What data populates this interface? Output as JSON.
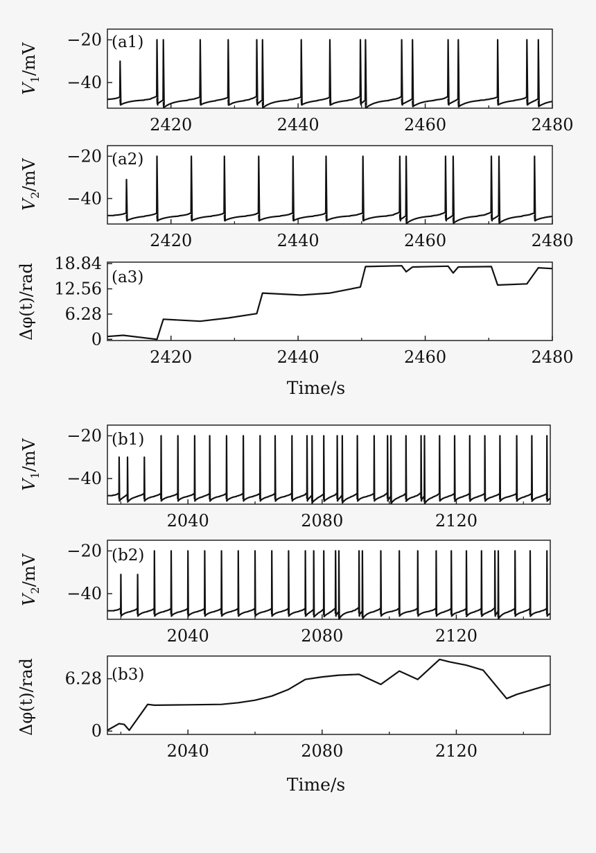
{
  "chart_data": [
    {
      "id": "a1",
      "type": "line",
      "panel_label": "(a1)",
      "ylabel": "V_1/mV",
      "ylabel_main": "V",
      "ylabel_sub": "1",
      "ylabel_rest": "/mV",
      "xlim": [
        2410,
        2480
      ],
      "ylim": [
        -52,
        -15
      ],
      "xticks": [
        2420,
        2440,
        2460,
        2480
      ],
      "yticks": [
        -20,
        -40
      ],
      "baseline": -48,
      "spikes": [
        2412,
        2417.8,
        2418.8,
        2424.6,
        2429.0,
        2433.5,
        2434.4,
        2440.5,
        2445.0,
        2449.8,
        2450.6,
        2456.3,
        2458.0,
        2463.6,
        2465.2,
        2471.4,
        2476.0,
        2477.8
      ],
      "spike_peak": -20,
      "small_spikes": [
        2412
      ],
      "small_peak": -30
    },
    {
      "id": "a2",
      "type": "line",
      "panel_label": "(a2)",
      "ylabel": "V_2/mV",
      "ylabel_main": "V",
      "ylabel_sub": "2",
      "ylabel_rest": "/mV",
      "xlim": [
        2410,
        2480
      ],
      "ylim": [
        -52,
        -15
      ],
      "xticks": [
        2420,
        2440,
        2460,
        2480
      ],
      "yticks": [
        -20,
        -40
      ],
      "baseline": -48,
      "spikes": [
        2413.0,
        2417.8,
        2423.2,
        2428.4,
        2433.8,
        2439.2,
        2444.4,
        2450.2,
        2456.0,
        2457.0,
        2463.2,
        2464.4,
        2470.4,
        2471.6,
        2477.2
      ],
      "spike_peak": -20,
      "small_spikes": [
        2413.0
      ],
      "small_peak": -31
    },
    {
      "id": "a3",
      "type": "line",
      "panel_label": "(a3)",
      "ylabel": "Δφ(t)/rad",
      "xlabel": "Time/s",
      "xlim": [
        2410,
        2480
      ],
      "ylim": [
        -0.3,
        19.2
      ],
      "xticks": [
        2420,
        2440,
        2460,
        2480
      ],
      "yticks": [
        0,
        6.28,
        12.56,
        18.84
      ],
      "ytick_labels": [
        "0",
        "6.28",
        "12.56",
        "18.84"
      ],
      "series": [
        {
          "x": [
            2410,
            2412.5,
            2417.8,
            2418.8,
            2424.6,
            2429.0,
            2433.5,
            2434.4,
            2440.5,
            2445.0,
            2449.8,
            2450.6,
            2456.3,
            2457.0,
            2458.0,
            2463.6,
            2464.4,
            2465.2,
            2470.4,
            2471.4,
            2476.0,
            2477.8,
            2480
          ],
          "y": [
            0.7,
            1.0,
            0.0,
            5.0,
            4.5,
            5.3,
            6.4,
            11.5,
            11.0,
            11.5,
            13.0,
            18.1,
            18.3,
            16.8,
            18.0,
            18.2,
            16.5,
            18.0,
            18.1,
            13.5,
            13.8,
            17.8,
            17.6
          ]
        }
      ]
    },
    {
      "id": "b1",
      "type": "line",
      "panel_label": "(b1)",
      "ylabel": "V_1/mV",
      "ylabel_main": "V",
      "ylabel_sub": "1",
      "ylabel_rest": "/mV",
      "xlim": [
        2016,
        2148
      ],
      "ylim": [
        -52,
        -15
      ],
      "xticks": [
        2040,
        2080,
        2120
      ],
      "yticks": [
        -20,
        -40
      ],
      "baseline": -48,
      "spikes": [
        2019.5,
        2022,
        2027,
        2032,
        2037,
        2042,
        2046.5,
        2051.5,
        2056.5,
        2061.5,
        2066,
        2071,
        2075.5,
        2077,
        2080.5,
        2084.5,
        2086,
        2090.5,
        2095.5,
        2099.5,
        2100.5,
        2105,
        2109.5,
        2110.5,
        2115,
        2119.5,
        2124,
        2128.5,
        2133,
        2138,
        2142.5,
        2147
      ],
      "spike_peak": -20,
      "small_spikes": [
        2019.5,
        2022,
        2027
      ],
      "small_peak": -30
    },
    {
      "id": "b2",
      "type": "line",
      "panel_label": "(b2)",
      "ylabel": "V_2/mV",
      "ylabel_main": "V",
      "ylabel_sub": "2",
      "ylabel_rest": "/mV",
      "xlim": [
        2016,
        2148
      ],
      "ylim": [
        -52,
        -15
      ],
      "xticks": [
        2040,
        2080,
        2120
      ],
      "yticks": [
        -20,
        -40
      ],
      "baseline": -48,
      "spikes": [
        2020,
        2025,
        2030,
        2035,
        2040,
        2045,
        2050,
        2055,
        2060,
        2065,
        2070,
        2075,
        2077.5,
        2080.5,
        2084,
        2085,
        2091,
        2092,
        2097.5,
        2103,
        2108.5,
        2114,
        2118.5,
        2123,
        2127.5,
        2131.5,
        2132.5,
        2137.5,
        2142,
        2147
      ],
      "spike_peak": -20,
      "small_spikes": [
        2020,
        2025
      ],
      "small_peak": -31
    },
    {
      "id": "b3",
      "type": "line",
      "panel_label": "(b3)",
      "ylabel": "Δφ(t)/rad",
      "xlabel": "Time/s",
      "xlim": [
        2016,
        2148
      ],
      "ylim": [
        -0.4,
        9.0
      ],
      "xticks": [
        2040,
        2080,
        2120
      ],
      "yticks": [
        0,
        6.28
      ],
      "ytick_labels": [
        "0",
        "6.28"
      ],
      "series": [
        {
          "x": [
            2016,
            2019.5,
            2021,
            2022.5,
            2028,
            2030,
            2040,
            2050,
            2055,
            2060,
            2065,
            2070,
            2075,
            2080,
            2085,
            2091,
            2097.5,
            2103,
            2108.5,
            2115,
            2118,
            2123,
            2128,
            2135,
            2138,
            2143,
            2148
          ],
          "y": [
            0.1,
            0.9,
            0.8,
            0.1,
            3.2,
            3.1,
            3.15,
            3.2,
            3.4,
            3.7,
            4.2,
            5.0,
            6.2,
            6.5,
            6.7,
            6.8,
            5.6,
            7.2,
            6.2,
            8.6,
            8.3,
            7.9,
            7.3,
            3.9,
            4.4,
            5.0,
            5.6
          ]
        }
      ]
    }
  ]
}
